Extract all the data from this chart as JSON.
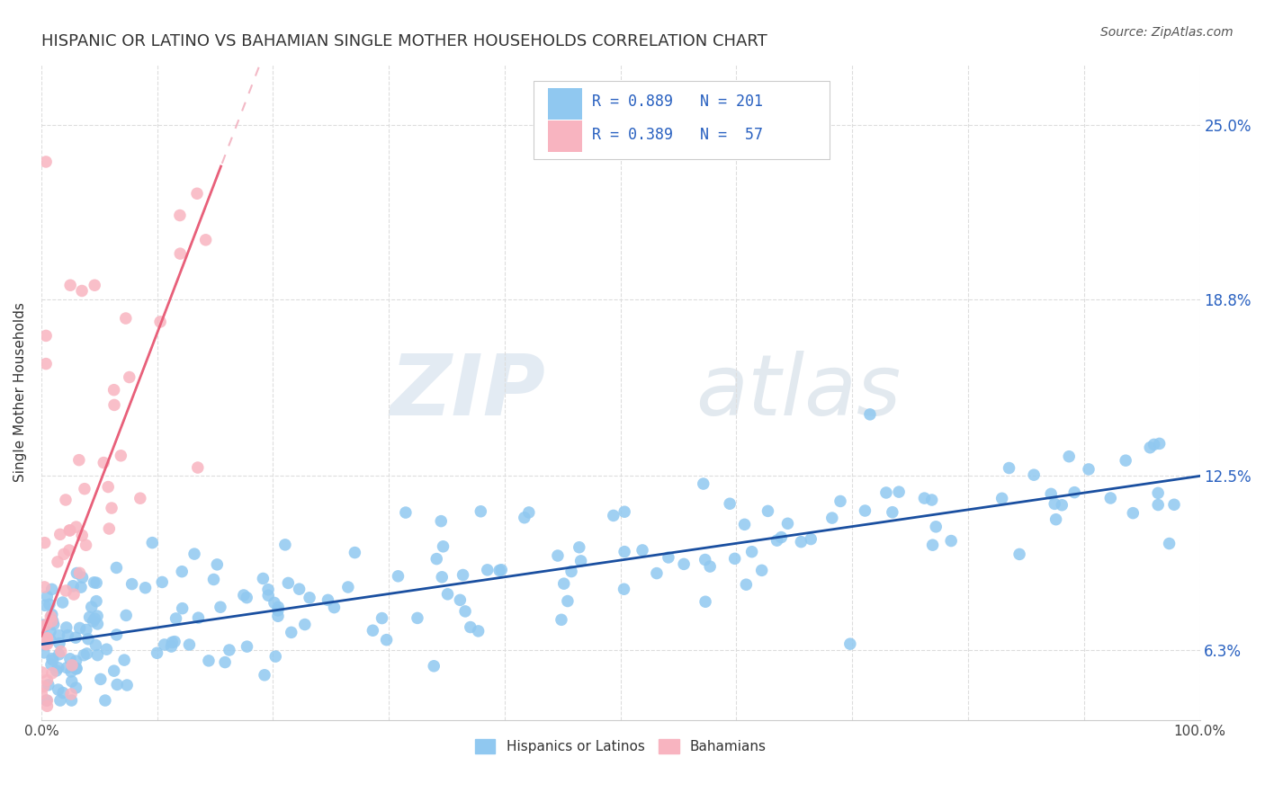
{
  "title": "HISPANIC OR LATINO VS BAHAMIAN SINGLE MOTHER HOUSEHOLDS CORRELATION CHART",
  "source": "Source: ZipAtlas.com",
  "ylabel": "Single Mother Households",
  "ytick_labels": [
    "6.3%",
    "12.5%",
    "18.8%",
    "25.0%"
  ],
  "ytick_values": [
    0.063,
    0.125,
    0.188,
    0.25
  ],
  "xlim": [
    0.0,
    1.0
  ],
  "ylim": [
    0.038,
    0.272
  ],
  "watermark_zip": "ZIP",
  "watermark_atlas": "atlas",
  "blue_color": "#90c8f0",
  "pink_color": "#f8b4c0",
  "line_blue": "#1a4fa0",
  "line_pink": "#e8607a",
  "line_pink_dash_color": "#f0a8b8",
  "label_blue": "Hispanics or Latinos",
  "label_pink": "Bahamians",
  "title_color": "#333333",
  "axis_label_color": "#2860c0",
  "legend_text_color": "#2860c0",
  "background_color": "#ffffff",
  "grid_color": "#dddddd",
  "blue_intercept": 0.065,
  "blue_slope": 0.06,
  "pink_intercept": 0.068,
  "pink_slope": 1.08,
  "pink_dash_intercept": 0.068,
  "pink_dash_slope": 1.08
}
